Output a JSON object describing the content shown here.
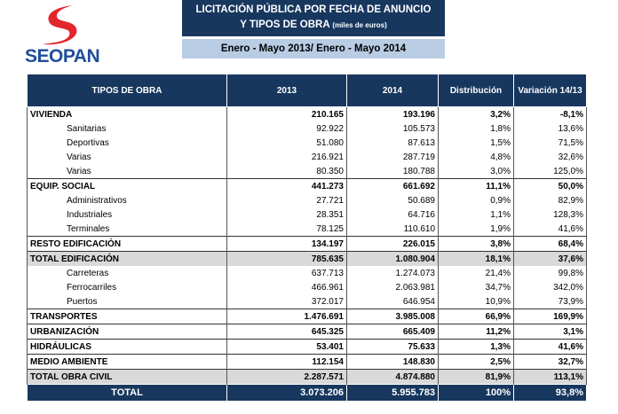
{
  "logo": {
    "text": "SEOPAN"
  },
  "header": {
    "title": "LICITACIÓN PÚBLICA POR FECHA DE ANUNCIO",
    "subtitle": "Y TIPOS DE OBRA",
    "unit": "(miles de euros)",
    "period": "Enero - Mayo 2013/ Enero - Mayo 2014"
  },
  "table": {
    "columns": [
      "TIPOS DE OBRA",
      "2013",
      "2014",
      "Distribución",
      "Variación 14/13"
    ],
    "rows": [
      [
        "VIVIENDA",
        "210.165",
        "193.196",
        "3,2%",
        "-8,1%"
      ],
      [
        "Sanitarias",
        "92.922",
        "105.573",
        "1,8%",
        "13,6%"
      ],
      [
        "Deportivas",
        "51.080",
        "87.613",
        "1,5%",
        "71,5%"
      ],
      [
        "Varias",
        "216.921",
        "287.719",
        "4,8%",
        "32,6%"
      ],
      [
        "Varias",
        "80.350",
        "180.788",
        "3,0%",
        "125,0%"
      ],
      [
        "EQUIP. SOCIAL",
        "441.273",
        "661.692",
        "11,1%",
        "50,0%"
      ],
      [
        "Administrativos",
        "27.721",
        "50.689",
        "0,9%",
        "82,9%"
      ],
      [
        "Industriales",
        "28.351",
        "64.716",
        "1,1%",
        "128,3%"
      ],
      [
        "Terminales",
        "78.125",
        "110.610",
        "1,9%",
        "41,6%"
      ],
      [
        "RESTO EDIFICACIÓN",
        "134.197",
        "226.015",
        "3,8%",
        "68,4%"
      ],
      [
        "TOTAL EDIFICACIÓN",
        "785.635",
        "1.080.904",
        "18,1%",
        "37,6%"
      ],
      [
        "Carreteras",
        "637.713",
        "1.274.073",
        "21,4%",
        "99,8%"
      ],
      [
        "Ferrocarriles",
        "466.961",
        "2.063.981",
        "34,7%",
        "342,0%"
      ],
      [
        "Puertos",
        "372.017",
        "646.954",
        "10,9%",
        "73,9%"
      ],
      [
        "TRANSPORTES",
        "1.476.691",
        "3.985.008",
        "66,9%",
        "169,9%"
      ],
      [
        "URBANIZACIÓN",
        "645.325",
        "665.409",
        "11,2%",
        "3,1%"
      ],
      [
        "HIDRÁULICAS",
        "53.401",
        "75.633",
        "1,3%",
        "41,6%"
      ],
      [
        "MEDIO AMBIENTE",
        "112.154",
        "148.830",
        "2,5%",
        "32,7%"
      ],
      [
        "TOTAL OBRA CIVIL",
        "2.287.571",
        "4.874.880",
        "81,9%",
        "113,1%"
      ],
      [
        "TOTAL",
        "3.073.206",
        "5.955.783",
        "100%",
        "93,8%"
      ]
    ]
  }
}
